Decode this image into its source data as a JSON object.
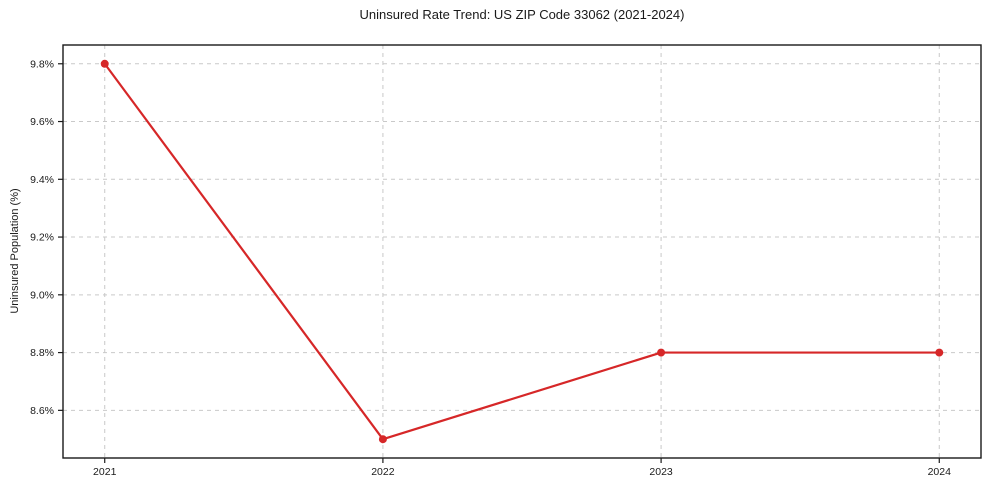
{
  "chart_data": {
    "type": "line",
    "title": "Uninsured Rate Trend: US ZIP Code 33062 (2021-2024)",
    "xlabel": "",
    "ylabel": "Uninsured Population (%)",
    "x": [
      2021,
      2022,
      2023,
      2024
    ],
    "categories": [
      "2021",
      "2022",
      "2023",
      "2024"
    ],
    "series": [
      {
        "name": "Uninsured Population (%)",
        "values": [
          9.8,
          8.5,
          8.8,
          8.8
        ],
        "color": "#d62728",
        "marker": "circle"
      }
    ],
    "xlim": [
      2020.85,
      2024.15
    ],
    "ylim": [
      8.435,
      9.865
    ],
    "yticks": [
      {
        "value": 8.6,
        "label": "8.6%"
      },
      {
        "value": 8.8,
        "label": "8.8%"
      },
      {
        "value": 9.0,
        "label": "9.0%"
      },
      {
        "value": 9.2,
        "label": "9.2%"
      },
      {
        "value": 9.4,
        "label": "9.4%"
      },
      {
        "value": 9.6,
        "label": "9.6%"
      },
      {
        "value": 9.8,
        "label": "9.8%"
      }
    ],
    "xticks": [
      {
        "value": 2021,
        "label": "2021"
      },
      {
        "value": 2022,
        "label": "2022"
      },
      {
        "value": 2023,
        "label": "2023"
      },
      {
        "value": 2024,
        "label": "2024"
      }
    ],
    "grid": true,
    "grid_style": "dashed",
    "legend": false
  },
  "style": {
    "line_color": "#d62728",
    "grid_color": "#c9c9c9",
    "spine_color": "#1a1a1a",
    "text_color": "#1a1a1a",
    "background": "#ffffff"
  }
}
